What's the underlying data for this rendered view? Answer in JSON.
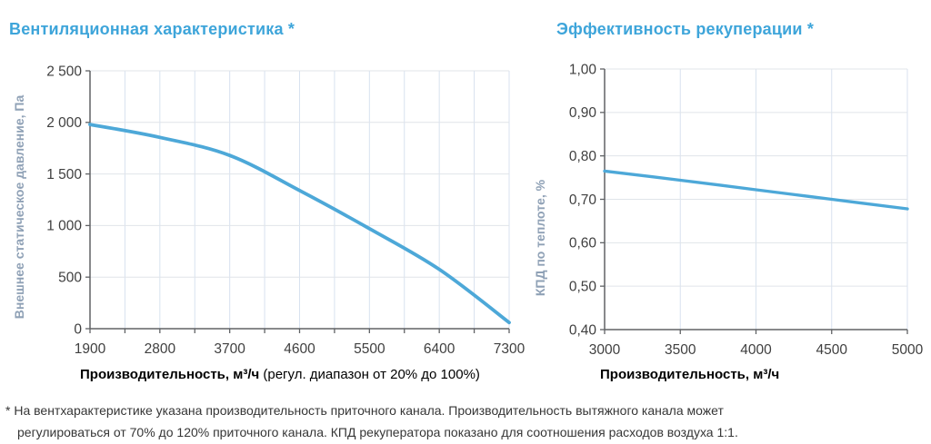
{
  "page": {
    "footnote_lines": [
      "* На вентхарактеристике указана производительность приточного канала. Производительность вытяжного канала может",
      "регулироваться от 70% до 120% приточного канала. КПД рекуператора показано для соотношения расходов воздуха 1:1."
    ]
  },
  "colors": {
    "title_blue": "#3ea5da",
    "curve_blue": "#4da8d8",
    "axis_label_blue_gray": "#8fa1b6",
    "tick_text": "#3f3f3f",
    "grid_horizontal": "#e0e4e9",
    "grid_vertical": "#d8e2ef",
    "axis_line": "#606265",
    "footnote_text": "#363636"
  },
  "chart_data": [
    {
      "type": "line",
      "title": "Вентиляционная характеристика *",
      "ylabel": "Внешнее статическое давление, Па",
      "xlabel_bold": "Производительность, м³/ч",
      "xlabel_rest": " (регул. диапазон от 20% до 100%)",
      "x": [
        1900,
        2800,
        3700,
        4600,
        5500,
        6400,
        7300
      ],
      "y": [
        1980,
        1855,
        1680,
        1340,
        970,
        575,
        60
      ],
      "xlim": [
        1900,
        7300
      ],
      "ylim": [
        0,
        2500
      ],
      "x_ticks": [
        1900,
        2800,
        3700,
        4600,
        5500,
        6400,
        7300
      ],
      "x_minor_step": 450,
      "y_ticks": [
        0,
        500,
        1000,
        1500,
        2000,
        2500
      ],
      "y_tick_labels": [
        "0",
        "500",
        "1 000",
        "1 500",
        "2 000",
        "2 500"
      ],
      "grid": true,
      "legend": "none"
    },
    {
      "type": "line",
      "title": "Эффективность рекуперации *",
      "ylabel": "КПД по теплоте, %",
      "xlabel_bold": "Производительность, м³/ч",
      "xlabel_rest": "",
      "x": [
        3000,
        3500,
        4000,
        4500,
        5000
      ],
      "y": [
        0.765,
        0.744,
        0.722,
        0.7,
        0.678
      ],
      "xlim": [
        3000,
        5000
      ],
      "ylim": [
        0.4,
        1.0
      ],
      "x_ticks": [
        3000,
        3500,
        4000,
        4500,
        5000
      ],
      "x_minor_step": 500,
      "y_ticks": [
        0.4,
        0.5,
        0.6,
        0.7,
        0.8,
        0.9,
        1.0
      ],
      "y_tick_labels": [
        "0,40",
        "0,50",
        "0,60",
        "0,70",
        "0,80",
        "0,90",
        "1,00"
      ],
      "grid": true,
      "legend": "none"
    }
  ]
}
